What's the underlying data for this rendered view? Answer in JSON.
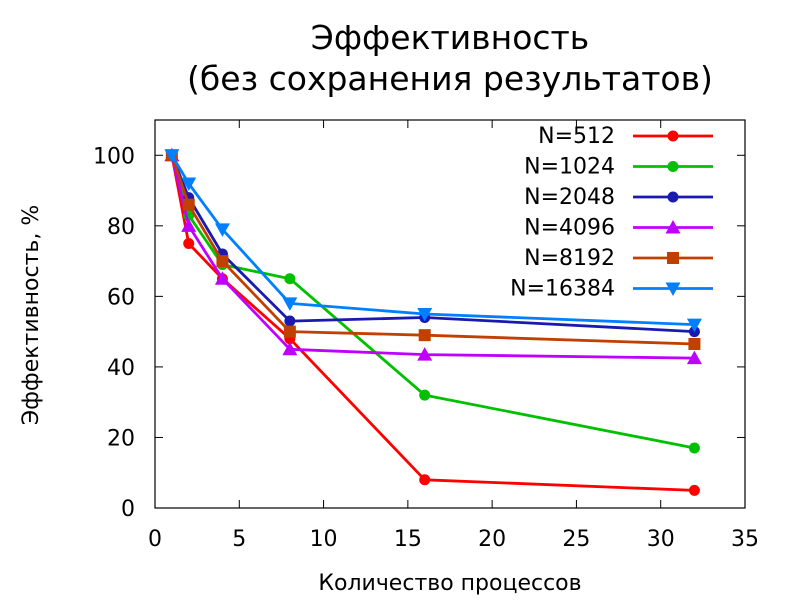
{
  "chart_data": {
    "type": "line",
    "title": "Эффективность",
    "subtitle": "(без сохранения результатов)",
    "xlabel": "Количество процессов",
    "ylabel": "Эффективность, %",
    "xlim": [
      0,
      35
    ],
    "ylim": [
      0,
      110
    ],
    "xticks": [
      0,
      5,
      10,
      15,
      20,
      25,
      30,
      35
    ],
    "yticks": [
      0,
      20,
      40,
      60,
      80,
      100
    ],
    "grid": false,
    "legend_position": "top-right",
    "x": [
      1,
      2,
      4,
      8,
      16,
      32
    ],
    "series": [
      {
        "name": "N=512",
        "color": "#ff0000",
        "marker": "circle",
        "values": [
          100,
          75,
          65,
          48,
          8,
          5
        ]
      },
      {
        "name": "N=1024",
        "color": "#00c000",
        "marker": "circle",
        "values": [
          100,
          83,
          69,
          65,
          32,
          17
        ]
      },
      {
        "name": "N=2048",
        "color": "#1a1ab0",
        "marker": "circle",
        "values": [
          100,
          88,
          72,
          53,
          54,
          50
        ]
      },
      {
        "name": "N=4096",
        "color": "#c000ff",
        "marker": "triangle-up",
        "values": [
          100,
          80,
          65,
          45,
          43.5,
          42.5
        ]
      },
      {
        "name": "N=8192",
        "color": "#c04000",
        "marker": "square",
        "values": [
          100,
          86,
          70,
          50,
          49,
          46.5
        ]
      },
      {
        "name": "N=16384",
        "color": "#0080ff",
        "marker": "triangle-down",
        "values": [
          100,
          92,
          79,
          58,
          55,
          52
        ]
      }
    ]
  }
}
